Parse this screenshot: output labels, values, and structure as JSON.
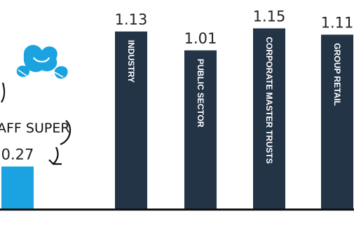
{
  "chart_data": {
    "type": "bar",
    "categories": [
      "",
      "INDUSTRY",
      "PUBLIC SECTOR",
      "CORPORATE MASTER TRUSTS",
      "GROUP RETAIL"
    ],
    "values": [
      0.27,
      1.13,
      1.01,
      1.15,
      1.11
    ],
    "value_labels": [
      "0.27",
      "1.13",
      "1.01",
      "1.15",
      "1.11"
    ],
    "ylim": [
      0,
      1.17
    ],
    "grid": false,
    "colors": {
      "highlight": "#1aa3e0",
      "bars": "#243447",
      "axis": "#111111"
    }
  },
  "annotation": {
    "text": "AFF SUPER",
    "icon": "hand-drawn-logo-icon"
  }
}
